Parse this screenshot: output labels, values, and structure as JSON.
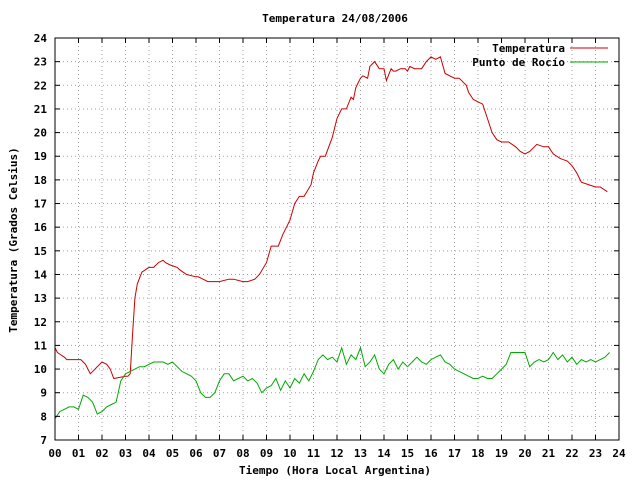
{
  "chart_data": {
    "type": "line",
    "title": "Temperatura 24/08/2006",
    "xlabel": "Tiempo (Hora Local Argentina)",
    "ylabel": "Temperatura (Grados Celsius)",
    "xlim": [
      0,
      24
    ],
    "ylim": [
      7,
      24
    ],
    "grid": true,
    "legend_position": "top-right",
    "x_tick_labels": [
      "00",
      "01",
      "02",
      "03",
      "04",
      "05",
      "06",
      "07",
      "08",
      "09",
      "10",
      "11",
      "12",
      "13",
      "14",
      "15",
      "16",
      "17",
      "18",
      "19",
      "20",
      "21",
      "22",
      "23",
      "24"
    ],
    "y_tick_labels": [
      "7",
      "8",
      "9",
      "10",
      "11",
      "12",
      "13",
      "14",
      "15",
      "16",
      "17",
      "18",
      "19",
      "20",
      "21",
      "22",
      "23",
      "24"
    ],
    "series": [
      {
        "name": "Temperatura",
        "color": "#cc0000",
        "x": [
          0.0,
          0.1,
          0.25,
          0.4,
          0.5,
          1.1,
          1.3,
          1.5,
          2.0,
          2.2,
          2.35,
          2.5,
          3.0,
          3.1,
          3.2,
          3.3,
          3.4,
          3.5,
          3.7,
          4.0,
          4.2,
          4.4,
          4.6,
          4.7,
          4.9,
          5.2,
          5.3,
          5.6,
          6.0,
          6.1,
          6.3,
          6.5,
          7.0,
          7.4,
          7.6,
          8.0,
          8.2,
          8.5,
          8.7,
          9.0,
          9.2,
          9.5,
          9.7,
          10.0,
          10.2,
          10.4,
          10.6,
          10.9,
          11.0,
          11.2,
          11.3,
          11.5,
          11.8,
          12.0,
          12.2,
          12.4,
          12.6,
          12.7,
          12.8,
          12.9,
          13.0,
          13.1,
          13.3,
          13.4,
          13.6,
          13.8,
          14.0,
          14.1,
          14.3,
          14.4,
          14.5,
          14.7,
          14.9,
          15.0,
          15.1,
          15.3,
          15.6,
          15.8,
          16.0,
          16.2,
          16.4,
          16.6,
          17.0,
          17.2,
          17.5,
          17.6,
          17.8,
          18.0,
          18.2,
          18.4,
          18.6,
          18.8,
          19.0,
          19.3,
          19.6,
          19.8,
          20.0,
          20.2,
          20.5,
          20.8,
          21.0,
          21.2,
          21.5,
          21.8,
          22.0,
          22.2,
          22.4,
          22.7,
          23.0,
          23.2,
          23.5
        ],
        "y": [
          10.9,
          10.7,
          10.6,
          10.5,
          10.4,
          10.4,
          10.2,
          9.8,
          10.3,
          10.2,
          10.0,
          9.6,
          9.7,
          9.7,
          9.8,
          11.5,
          13.0,
          13.6,
          14.1,
          14.3,
          14.3,
          14.5,
          14.6,
          14.5,
          14.4,
          14.3,
          14.2,
          14.0,
          13.9,
          13.9,
          13.8,
          13.7,
          13.7,
          13.8,
          13.8,
          13.7,
          13.7,
          13.8,
          14.0,
          14.5,
          15.2,
          15.2,
          15.7,
          16.3,
          17.0,
          17.3,
          17.3,
          17.8,
          18.3,
          18.8,
          19.0,
          19.0,
          19.8,
          20.6,
          21.0,
          21.0,
          21.5,
          21.4,
          21.9,
          22.1,
          22.3,
          22.4,
          22.3,
          22.8,
          23.0,
          22.7,
          22.7,
          22.2,
          22.7,
          22.6,
          22.6,
          22.7,
          22.7,
          22.6,
          22.8,
          22.7,
          22.7,
          23.0,
          23.2,
          23.1,
          23.2,
          22.5,
          22.3,
          22.3,
          22.0,
          21.7,
          21.4,
          21.3,
          21.2,
          20.6,
          20.0,
          19.7,
          19.6,
          19.6,
          19.4,
          19.2,
          19.1,
          19.2,
          19.5,
          19.4,
          19.4,
          19.1,
          18.9,
          18.8,
          18.6,
          18.3,
          17.9,
          17.8,
          17.7,
          17.7,
          17.5
        ]
      },
      {
        "name": "Punto de Rocío",
        "color": "#00aa00",
        "x": [
          0.0,
          0.2,
          0.4,
          0.6,
          0.8,
          1.0,
          1.2,
          1.4,
          1.6,
          1.8,
          2.0,
          2.2,
          2.4,
          2.6,
          2.8,
          3.0,
          3.2,
          3.4,
          3.6,
          3.8,
          4.0,
          4.2,
          4.4,
          4.6,
          4.8,
          5.0,
          5.2,
          5.4,
          5.6,
          5.8,
          6.0,
          6.2,
          6.4,
          6.6,
          6.8,
          7.0,
          7.2,
          7.4,
          7.6,
          7.8,
          8.0,
          8.2,
          8.4,
          8.6,
          8.8,
          9.0,
          9.2,
          9.4,
          9.6,
          9.8,
          10.0,
          10.2,
          10.4,
          10.6,
          10.8,
          11.0,
          11.2,
          11.4,
          11.6,
          11.8,
          12.0,
          12.2,
          12.4,
          12.6,
          12.8,
          13.0,
          13.2,
          13.4,
          13.6,
          13.8,
          14.0,
          14.2,
          14.4,
          14.6,
          14.8,
          15.0,
          15.2,
          15.4,
          15.6,
          15.8,
          16.0,
          16.2,
          16.4,
          16.6,
          16.8,
          17.0,
          17.2,
          17.4,
          17.6,
          17.8,
          18.0,
          18.2,
          18.4,
          18.6,
          18.8,
          19.0,
          19.2,
          19.4,
          19.6,
          19.8,
          20.0,
          20.2,
          20.4,
          20.6,
          20.8,
          21.0,
          21.2,
          21.4,
          21.6,
          21.8,
          22.0,
          22.2,
          22.4,
          22.6,
          22.8,
          23.0,
          23.2,
          23.4,
          23.6
        ],
        "y": [
          7.9,
          8.2,
          8.3,
          8.4,
          8.4,
          8.3,
          8.9,
          8.8,
          8.6,
          8.1,
          8.2,
          8.4,
          8.5,
          8.6,
          9.5,
          9.8,
          9.9,
          10.0,
          10.1,
          10.1,
          10.2,
          10.3,
          10.3,
          10.3,
          10.2,
          10.3,
          10.1,
          9.9,
          9.8,
          9.7,
          9.5,
          9.0,
          8.8,
          8.8,
          9.0,
          9.5,
          9.8,
          9.8,
          9.5,
          9.6,
          9.7,
          9.5,
          9.6,
          9.4,
          9.0,
          9.2,
          9.3,
          9.6,
          9.1,
          9.5,
          9.2,
          9.6,
          9.4,
          9.8,
          9.5,
          9.9,
          10.4,
          10.6,
          10.4,
          10.5,
          10.3,
          10.9,
          10.2,
          10.6,
          10.4,
          10.9,
          10.1,
          10.3,
          10.6,
          10.0,
          9.8,
          10.2,
          10.4,
          10.0,
          10.3,
          10.1,
          10.3,
          10.5,
          10.3,
          10.2,
          10.4,
          10.5,
          10.6,
          10.3,
          10.2,
          10.0,
          9.9,
          9.8,
          9.7,
          9.6,
          9.6,
          9.7,
          9.6,
          9.6,
          9.8,
          10.0,
          10.2,
          10.7,
          10.7,
          10.7,
          10.7,
          10.1,
          10.3,
          10.4,
          10.3,
          10.4,
          10.7,
          10.4,
          10.6,
          10.3,
          10.5,
          10.2,
          10.4,
          10.3,
          10.4,
          10.3,
          10.4,
          10.5,
          10.7
        ]
      }
    ]
  }
}
